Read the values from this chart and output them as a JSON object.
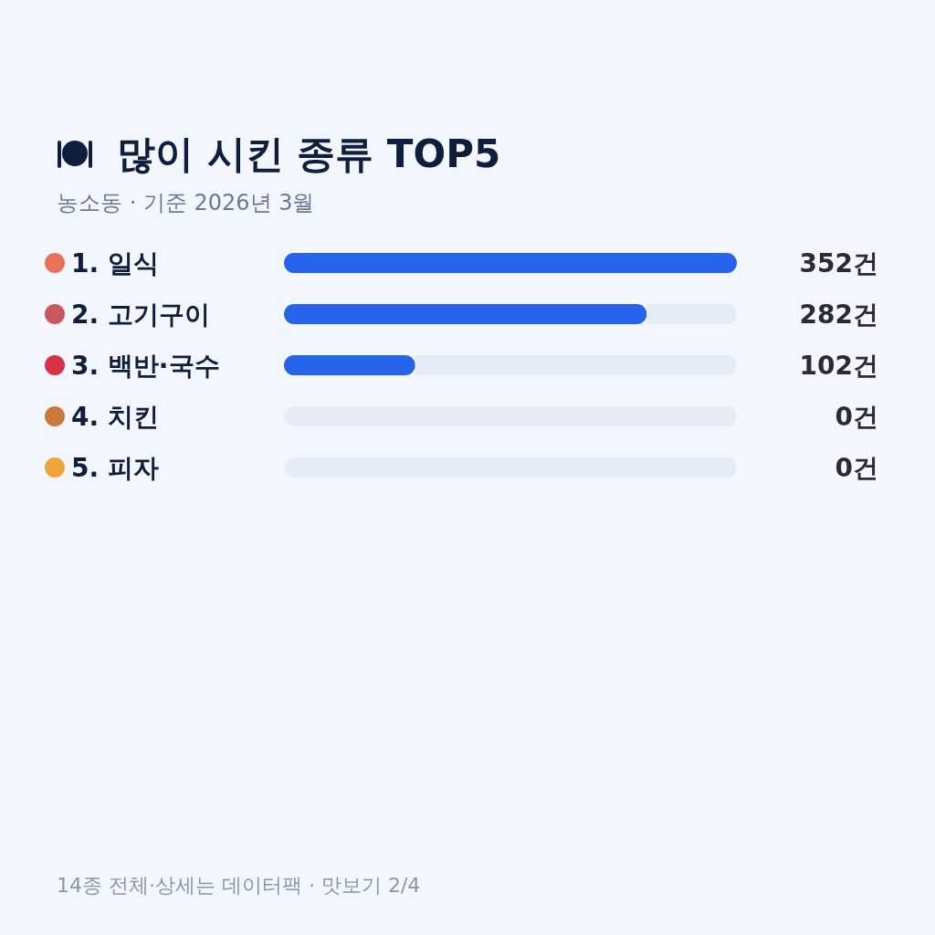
{
  "chart_data": {
    "type": "bar",
    "orientation": "horizontal",
    "stacked": true,
    "title": "많이 시킨 종류 TOP5",
    "subtitle": "농소동 · 기준 2026년 3월",
    "categories": [
      "1. 일식",
      "2. 고기구이",
      "3. 백반·국수",
      "4. 치킨",
      "5. 피자"
    ],
    "series": [
      {
        "color": "#2563eb",
        "values": [
          352,
          282,
          102,
          0,
          0
        ],
        "value_labels": [
          "352건",
          "282건",
          "102건",
          "0건",
          "0건"
        ]
      },
      {
        "color": "#e5ecf6",
        "values": [
          0,
          70,
          250,
          352,
          352
        ]
      }
    ],
    "xlim": [
      0,
      352
    ],
    "annotations": [
      "14종 전체·상세는 데이터팩 · 맛보기 2/4"
    ]
  }
}
